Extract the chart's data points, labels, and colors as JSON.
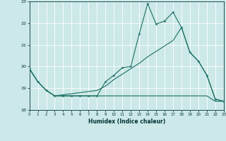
{
  "xlabel": "Humidex (Indice chaleur)",
  "bg_color": "#cce8e8",
  "grid_color": "#aacccc",
  "line_color": "#1a7060",
  "xlim": [
    0,
    23
  ],
  "ylim": [
    18,
    23
  ],
  "yticks": [
    18,
    19,
    20,
    21,
    22,
    23
  ],
  "xticks": [
    0,
    1,
    2,
    3,
    4,
    5,
    6,
    7,
    8,
    9,
    10,
    11,
    12,
    13,
    14,
    15,
    16,
    17,
    18,
    19,
    20,
    21,
    22,
    23
  ],
  "line1_x": [
    0,
    1,
    2,
    3,
    4,
    5,
    6,
    7,
    8,
    9,
    10,
    11,
    12,
    13,
    14,
    15,
    16,
    17,
    18,
    19,
    20,
    21,
    22,
    23
  ],
  "line1_y": [
    19.9,
    19.3,
    18.9,
    18.65,
    18.65,
    18.65,
    18.65,
    18.65,
    18.65,
    19.3,
    19.6,
    19.95,
    20.0,
    21.5,
    22.9,
    21.95,
    22.1,
    22.5,
    21.8,
    20.65,
    20.25,
    19.6,
    18.5,
    18.4
  ],
  "line2_x": [
    0,
    1,
    2,
    3,
    4,
    5,
    6,
    7,
    8,
    9,
    10,
    11,
    12,
    13,
    14,
    15,
    16,
    17,
    18,
    19,
    20,
    21,
    22,
    23
  ],
  "line2_y": [
    19.9,
    19.3,
    18.9,
    18.65,
    18.65,
    18.65,
    18.65,
    18.65,
    18.65,
    18.65,
    18.65,
    18.65,
    18.65,
    18.65,
    18.65,
    18.65,
    18.65,
    18.65,
    18.65,
    18.65,
    18.65,
    18.65,
    18.4,
    18.4
  ],
  "line3_x": [
    0,
    1,
    2,
    3,
    4,
    5,
    6,
    7,
    8,
    9,
    10,
    11,
    12,
    13,
    14,
    15,
    16,
    17,
    18,
    19,
    20,
    21,
    22,
    23
  ],
  "line3_y": [
    19.9,
    19.3,
    18.9,
    18.65,
    18.7,
    18.75,
    18.8,
    18.85,
    18.9,
    19.1,
    19.4,
    19.65,
    19.9,
    20.15,
    20.45,
    20.7,
    20.95,
    21.2,
    21.8,
    20.65,
    20.25,
    19.6,
    18.5,
    18.4
  ]
}
